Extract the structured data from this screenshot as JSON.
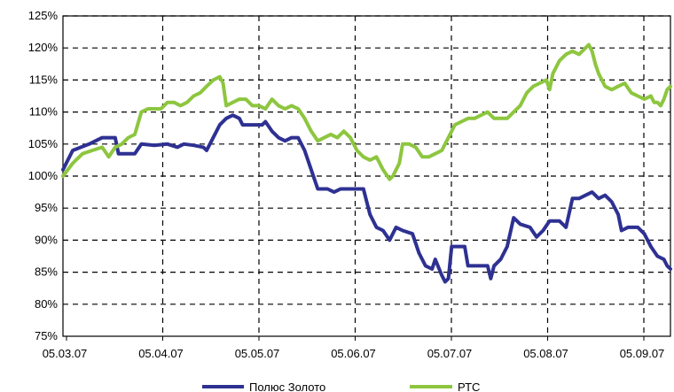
{
  "chart_data": {
    "type": "line",
    "x_tick_labels": [
      "05.03.07",
      "05.04.07",
      "05.05.07",
      "05.06.07",
      "05.07.07",
      "05.08.07",
      "05.09.07"
    ],
    "y_tick_labels": [
      "75%",
      "80%",
      "85%",
      "90%",
      "95%",
      "100%",
      "105%",
      "110%",
      "115%",
      "120%",
      "125%"
    ],
    "ylim": [
      75,
      125
    ],
    "xlim": [
      0,
      186
    ],
    "grid": true,
    "legend_position": "bottom",
    "series": [
      {
        "name": "Полюс Золото",
        "color": "#2e3192",
        "points": [
          [
            0,
            101
          ],
          [
            3,
            104
          ],
          [
            8,
            105
          ],
          [
            12,
            106
          ],
          [
            16,
            106
          ],
          [
            17,
            103.5
          ],
          [
            20,
            103.5
          ],
          [
            22,
            103.5
          ],
          [
            24,
            105
          ],
          [
            28,
            104.8
          ],
          [
            32,
            105
          ],
          [
            35,
            104.5
          ],
          [
            37,
            105
          ],
          [
            40,
            104.8
          ],
          [
            43,
            104.5
          ],
          [
            44,
            104
          ],
          [
            46,
            106
          ],
          [
            48,
            108
          ],
          [
            50,
            109
          ],
          [
            52,
            109.5
          ],
          [
            54,
            109
          ],
          [
            55,
            108
          ],
          [
            58,
            108
          ],
          [
            61,
            108
          ],
          [
            62,
            108.5
          ],
          [
            64,
            107
          ],
          [
            66,
            106
          ],
          [
            68,
            105.5
          ],
          [
            70,
            106
          ],
          [
            72,
            106
          ],
          [
            74,
            104
          ],
          [
            76,
            101
          ],
          [
            78,
            98
          ],
          [
            81,
            98
          ],
          [
            83,
            97.5
          ],
          [
            85,
            98
          ],
          [
            88,
            98
          ],
          [
            91,
            98
          ],
          [
            92,
            98
          ],
          [
            94,
            94
          ],
          [
            96,
            92
          ],
          [
            98,
            91.5
          ],
          [
            100,
            90
          ],
          [
            102,
            92
          ],
          [
            104,
            91.5
          ],
          [
            107,
            91
          ],
          [
            109,
            88
          ],
          [
            111,
            86
          ],
          [
            113,
            85.5
          ],
          [
            114,
            87
          ],
          [
            116,
            84.5
          ],
          [
            117,
            83.5
          ],
          [
            118,
            84
          ],
          [
            119,
            89
          ],
          [
            120,
            89
          ],
          [
            123,
            89
          ],
          [
            124,
            86
          ],
          [
            126,
            86
          ],
          [
            128,
            86
          ],
          [
            130,
            86
          ],
          [
            131,
            84
          ],
          [
            132,
            86
          ],
          [
            134,
            87
          ],
          [
            136,
            89
          ],
          [
            138,
            93.5
          ],
          [
            140,
            92.5
          ],
          [
            143,
            92
          ],
          [
            145,
            90.5
          ],
          [
            147,
            91.5
          ],
          [
            149,
            93
          ],
          [
            152,
            93
          ],
          [
            154,
            92
          ],
          [
            156,
            96.5
          ],
          [
            158,
            96.5
          ],
          [
            160,
            97
          ],
          [
            162,
            97.5
          ],
          [
            164,
            96.5
          ],
          [
            166,
            97
          ],
          [
            168,
            96
          ],
          [
            170,
            94
          ],
          [
            171,
            91.5
          ],
          [
            173,
            92
          ],
          [
            176,
            92
          ],
          [
            178,
            91
          ],
          [
            180,
            89
          ],
          [
            182,
            87.5
          ],
          [
            184,
            87
          ],
          [
            185,
            86
          ],
          [
            186,
            85.5
          ]
        ]
      },
      {
        "name": "РТС",
        "color": "#8dc63f",
        "points": [
          [
            0,
            100
          ],
          [
            3,
            102
          ],
          [
            6,
            103.5
          ],
          [
            9,
            104
          ],
          [
            12,
            104.5
          ],
          [
            14,
            103
          ],
          [
            16,
            104.5
          ],
          [
            18,
            105
          ],
          [
            20,
            106
          ],
          [
            22,
            106.5
          ],
          [
            24,
            110
          ],
          [
            26,
            110.5
          ],
          [
            28,
            110.5
          ],
          [
            30,
            110.5
          ],
          [
            32,
            111.5
          ],
          [
            34,
            111.5
          ],
          [
            36,
            111
          ],
          [
            38,
            111.5
          ],
          [
            40,
            112.5
          ],
          [
            42,
            113
          ],
          [
            44,
            114
          ],
          [
            46,
            115
          ],
          [
            48,
            115.5
          ],
          [
            49,
            114.5
          ],
          [
            50,
            111
          ],
          [
            52,
            111.5
          ],
          [
            54,
            112
          ],
          [
            56,
            112
          ],
          [
            58,
            111
          ],
          [
            60,
            111
          ],
          [
            62,
            110.5
          ],
          [
            64,
            112
          ],
          [
            66,
            111
          ],
          [
            68,
            110.5
          ],
          [
            70,
            111
          ],
          [
            72,
            110.5
          ],
          [
            74,
            109
          ],
          [
            76,
            107
          ],
          [
            78,
            105.5
          ],
          [
            80,
            106
          ],
          [
            82,
            106.5
          ],
          [
            84,
            106
          ],
          [
            86,
            107
          ],
          [
            88,
            106
          ],
          [
            90,
            104
          ],
          [
            92,
            103
          ],
          [
            94,
            102.5
          ],
          [
            96,
            103
          ],
          [
            98,
            101
          ],
          [
            100,
            99.5
          ],
          [
            101,
            100
          ],
          [
            102,
            101
          ],
          [
            103,
            102
          ],
          [
            104,
            105
          ],
          [
            106,
            105
          ],
          [
            108,
            104.5
          ],
          [
            110,
            103
          ],
          [
            112,
            103
          ],
          [
            114,
            103.5
          ],
          [
            116,
            104
          ],
          [
            118,
            106
          ],
          [
            120,
            108
          ],
          [
            122,
            108.5
          ],
          [
            124,
            109
          ],
          [
            126,
            109
          ],
          [
            128,
            109.5
          ],
          [
            130,
            110
          ],
          [
            131,
            109.5
          ],
          [
            132,
            109
          ],
          [
            134,
            109
          ],
          [
            136,
            109
          ],
          [
            138,
            110
          ],
          [
            140,
            111
          ],
          [
            142,
            113
          ],
          [
            144,
            114
          ],
          [
            146,
            114.5
          ],
          [
            148,
            115
          ],
          [
            149,
            113.5
          ],
          [
            150,
            116
          ],
          [
            152,
            118
          ],
          [
            154,
            119
          ],
          [
            156,
            119.5
          ],
          [
            158,
            119
          ],
          [
            160,
            120
          ],
          [
            161,
            120.5
          ],
          [
            162,
            119.5
          ],
          [
            163,
            117.5
          ],
          [
            164,
            116
          ],
          [
            166,
            114
          ],
          [
            168,
            113.5
          ],
          [
            170,
            114
          ],
          [
            172,
            114.5
          ],
          [
            174,
            113
          ],
          [
            176,
            112.5
          ],
          [
            178,
            112
          ],
          [
            180,
            112.5
          ],
          [
            181,
            111.5
          ],
          [
            182,
            111.5
          ],
          [
            183,
            111
          ],
          [
            184,
            112
          ],
          [
            185,
            113.5
          ],
          [
            186,
            114
          ]
        ]
      }
    ]
  }
}
